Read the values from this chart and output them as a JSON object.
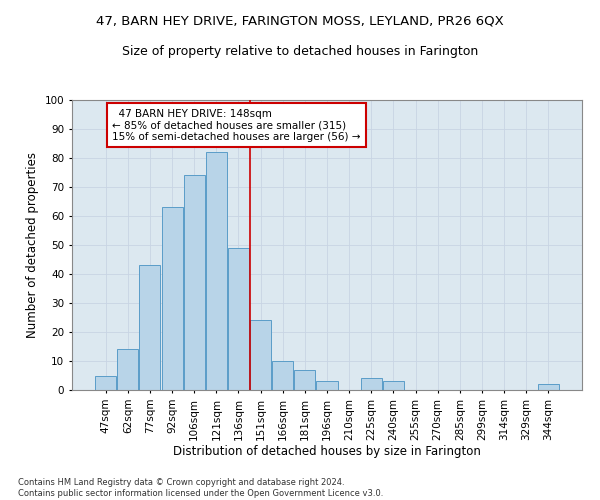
{
  "title": "47, BARN HEY DRIVE, FARINGTON MOSS, LEYLAND, PR26 6QX",
  "subtitle": "Size of property relative to detached houses in Farington",
  "xlabel": "Distribution of detached houses by size in Farington",
  "ylabel": "Number of detached properties",
  "categories": [
    "47sqm",
    "62sqm",
    "77sqm",
    "92sqm",
    "106sqm",
    "121sqm",
    "136sqm",
    "151sqm",
    "166sqm",
    "181sqm",
    "196sqm",
    "210sqm",
    "225sqm",
    "240sqm",
    "255sqm",
    "270sqm",
    "285sqm",
    "299sqm",
    "314sqm",
    "329sqm",
    "344sqm"
  ],
  "values": [
    5,
    14,
    43,
    63,
    74,
    82,
    49,
    24,
    10,
    7,
    3,
    0,
    4,
    3,
    0,
    0,
    0,
    0,
    0,
    0,
    2
  ],
  "bar_color": "#b8d4e8",
  "bar_edge_color": "#5a9dc8",
  "vline_color": "#cc0000",
  "vline_x": 6.5,
  "annotation_text": "  47 BARN HEY DRIVE: 148sqm\n← 85% of detached houses are smaller (315)\n15% of semi-detached houses are larger (56) →",
  "annotation_box_color": "#ffffff",
  "annotation_box_edge": "#cc0000",
  "grid_color": "#c8d4e4",
  "background_color": "#dce8f0",
  "title_fontsize": 9.5,
  "subtitle_fontsize": 9,
  "tick_fontsize": 7.5,
  "ylabel_fontsize": 8.5,
  "xlabel_fontsize": 8.5,
  "annot_fontsize": 7.5,
  "footer_text": "Contains HM Land Registry data © Crown copyright and database right 2024.\nContains public sector information licensed under the Open Government Licence v3.0.",
  "footer_fontsize": 6,
  "ylim": [
    0,
    100
  ],
  "yticks": [
    0,
    10,
    20,
    30,
    40,
    50,
    60,
    70,
    80,
    90,
    100
  ]
}
